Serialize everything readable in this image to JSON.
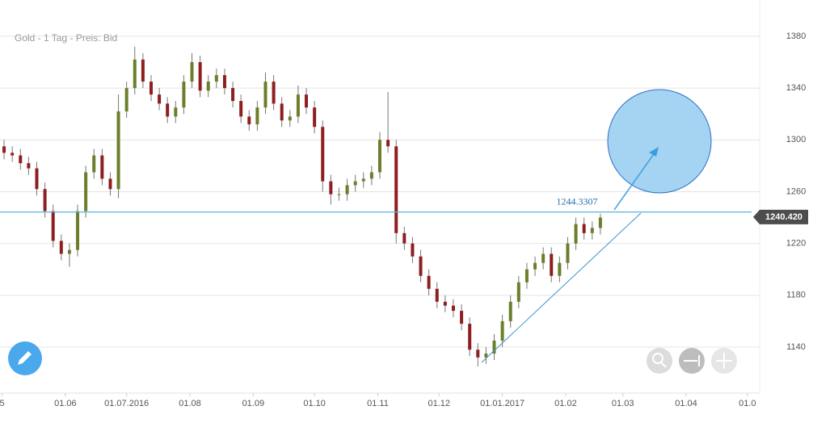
{
  "chart_data": {
    "type": "candlestick",
    "title": "Gold - 1 Tag - Preis: Bid",
    "x": [
      "02.05.2016",
      "06.05.2016",
      "10.05.2016",
      "14.05.2016",
      "18.05.2016",
      "22.05.2016",
      "26.05.2016",
      "30.05.2016",
      "03.06.2016",
      "07.06.2016",
      "11.06.2016",
      "15.06.2016",
      "19.06.2016",
      "23.06.2016",
      "27.06.2016",
      "01.07.2016",
      "05.07.2016",
      "09.07.2016",
      "13.07.2016",
      "17.07.2016",
      "21.07.2016",
      "25.07.2016",
      "29.07.2016",
      "02.08.2016",
      "06.08.2016",
      "10.08.2016",
      "14.08.2016",
      "18.08.2016",
      "22.08.2016",
      "26.08.2016",
      "30.08.2016",
      "03.09.2016",
      "07.09.2016",
      "11.09.2016",
      "15.09.2016",
      "19.09.2016",
      "23.09.2016",
      "27.09.2016",
      "01.10.2016",
      "05.10.2016",
      "09.10.2016",
      "13.10.2016",
      "17.10.2016",
      "21.10.2016",
      "25.10.2016",
      "29.10.2016",
      "02.11.2016",
      "06.11.2016",
      "10.11.2016",
      "14.11.2016",
      "18.11.2016",
      "22.11.2016",
      "26.11.2016",
      "30.11.2016",
      "04.12.2016",
      "08.12.2016",
      "12.12.2016",
      "16.12.2016",
      "20.12.2016",
      "24.12.2016",
      "28.12.2016",
      "01.01.2017",
      "05.01.2017",
      "09.01.2017",
      "13.01.2017",
      "17.01.2017",
      "21.01.2017",
      "25.01.2017",
      "29.01.2017",
      "02.02.2017",
      "06.02.2017",
      "10.02.2017",
      "14.02.2017",
      "18.02.2017"
    ],
    "open": [
      1295,
      1290,
      1288,
      1282,
      1278,
      1262,
      1245,
      1222,
      1212,
      1215,
      1245,
      1275,
      1288,
      1270,
      1262,
      1322,
      1340,
      1362,
      1345,
      1335,
      1328,
      1318,
      1325,
      1345,
      1360,
      1338,
      1345,
      1350,
      1340,
      1330,
      1318,
      1312,
      1325,
      1345,
      1328,
      1315,
      1318,
      1335,
      1325,
      1310,
      1268,
      1258,
      1258,
      1265,
      1268,
      1270,
      1275,
      1300,
      1295,
      1228,
      1220,
      1210,
      1195,
      1185,
      1175,
      1172,
      1168,
      1158,
      1138,
      1132,
      1135,
      1145,
      1160,
      1175,
      1190,
      1200,
      1205,
      1212,
      1195,
      1205,
      1220,
      1235,
      1228,
      1232
    ],
    "high": [
      1300,
      1295,
      1293,
      1287,
      1283,
      1267,
      1250,
      1227,
      1220,
      1250,
      1280,
      1293,
      1293,
      1275,
      1335,
      1345,
      1372,
      1367,
      1350,
      1340,
      1333,
      1330,
      1350,
      1367,
      1365,
      1350,
      1355,
      1355,
      1345,
      1335,
      1323,
      1330,
      1352,
      1350,
      1333,
      1323,
      1342,
      1340,
      1330,
      1315,
      1273,
      1263,
      1270,
      1273,
      1275,
      1280,
      1306,
      1337,
      1300,
      1233,
      1225,
      1215,
      1200,
      1190,
      1180,
      1177,
      1173,
      1163,
      1143,
      1140,
      1150,
      1165,
      1180,
      1195,
      1205,
      1210,
      1217,
      1217,
      1210,
      1225,
      1240,
      1240,
      1237,
      1243
    ],
    "low": [
      1285,
      1283,
      1277,
      1273,
      1257,
      1240,
      1217,
      1207,
      1202,
      1210,
      1240,
      1270,
      1265,
      1257,
      1255,
      1317,
      1335,
      1340,
      1330,
      1323,
      1313,
      1313,
      1320,
      1340,
      1333,
      1333,
      1340,
      1335,
      1325,
      1313,
      1307,
      1307,
      1320,
      1323,
      1310,
      1310,
      1313,
      1320,
      1305,
      1260,
      1250,
      1253,
      1253,
      1260,
      1263,
      1265,
      1270,
      1290,
      1220,
      1215,
      1205,
      1190,
      1180,
      1170,
      1167,
      1163,
      1153,
      1133,
      1125,
      1127,
      1130,
      1140,
      1155,
      1170,
      1185,
      1195,
      1200,
      1190,
      1190,
      1200,
      1215,
      1223,
      1223,
      1227
    ],
    "close": [
      1290,
      1288,
      1282,
      1278,
      1262,
      1245,
      1222,
      1212,
      1215,
      1245,
      1275,
      1288,
      1270,
      1262,
      1322,
      1340,
      1362,
      1345,
      1335,
      1328,
      1318,
      1325,
      1345,
      1360,
      1338,
      1345,
      1350,
      1340,
      1330,
      1318,
      1312,
      1325,
      1345,
      1328,
      1315,
      1318,
      1335,
      1325,
      1310,
      1268,
      1258,
      1258,
      1265,
      1268,
      1270,
      1275,
      1300,
      1295,
      1228,
      1220,
      1210,
      1195,
      1185,
      1175,
      1172,
      1168,
      1158,
      1138,
      1132,
      1135,
      1145,
      1160,
      1175,
      1190,
      1200,
      1205,
      1212,
      1195,
      1205,
      1220,
      1235,
      1228,
      1232,
      1240
    ],
    "up_color": "#6b7f2a",
    "down_color": "#8e1f1f",
    "xlim": [
      "30.04.2016",
      "07.05.2017"
    ],
    "xticks": [
      {
        "value": "01.05.2016",
        "label": "5"
      },
      {
        "value": "01.06.2016",
        "label": "01.06"
      },
      {
        "value": "01.07.2016",
        "label": "01.07.2016"
      },
      {
        "value": "01.08.2016",
        "label": "01.08"
      },
      {
        "value": "01.09.2016",
        "label": "01.09"
      },
      {
        "value": "01.10.2016",
        "label": "01.10"
      },
      {
        "value": "01.11.2016",
        "label": "01.11"
      },
      {
        "value": "01.12.2016",
        "label": "01.12"
      },
      {
        "value": "01.01.2017",
        "label": "01.01.2017"
      },
      {
        "value": "01.02.2017",
        "label": "01.02"
      },
      {
        "value": "01.03.2017",
        "label": "01.03"
      },
      {
        "value": "01.04.2017",
        "label": "01.04"
      },
      {
        "value": "01.05.2017",
        "label": "01.0"
      }
    ],
    "ylim": [
      1102.6,
      1408
    ],
    "yticks": [
      1140,
      1180,
      1220,
      1260,
      1300,
      1340,
      1380
    ],
    "grid": true,
    "hline": 1244.3307,
    "hline_color": "#5ab4e0",
    "last_price": {
      "value": 1240.42,
      "label": "1240.420"
    }
  }
}
